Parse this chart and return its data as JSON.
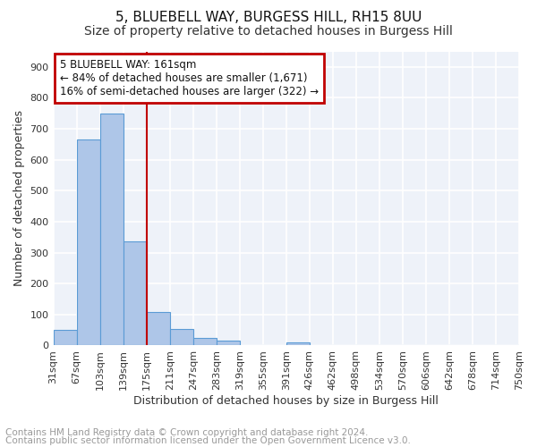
{
  "title1": "5, BLUEBELL WAY, BURGESS HILL, RH15 8UU",
  "title2": "Size of property relative to detached houses in Burgess Hill",
  "xlabel": "Distribution of detached houses by size in Burgess Hill",
  "ylabel": "Number of detached properties",
  "bin_labels": [
    "31sqm",
    "67sqm",
    "103sqm",
    "139sqm",
    "175sqm",
    "211sqm",
    "247sqm",
    "283sqm",
    "319sqm",
    "355sqm",
    "391sqm",
    "426sqm",
    "462sqm",
    "498sqm",
    "534sqm",
    "570sqm",
    "606sqm",
    "642sqm",
    "678sqm",
    "714sqm",
    "750sqm"
  ],
  "bar_values": [
    50,
    665,
    750,
    335,
    109,
    52,
    25,
    17,
    0,
    0,
    10,
    0,
    0,
    0,
    0,
    0,
    0,
    0,
    0,
    0
  ],
  "bar_color": "#aec6e8",
  "bar_edge_color": "#5b9bd5",
  "vline_value": 3.5,
  "vline_color": "#c00000",
  "ylim": [
    0,
    950
  ],
  "yticks": [
    0,
    100,
    200,
    300,
    400,
    500,
    600,
    700,
    800,
    900
  ],
  "annotation_title": "5 BLUEBELL WAY: 161sqm",
  "annotation_line1": "← 84% of detached houses are smaller (1,671)",
  "annotation_line2": "16% of semi-detached houses are larger (322) →",
  "annotation_box_edgecolor": "#c00000",
  "footer1": "Contains HM Land Registry data © Crown copyright and database right 2024.",
  "footer2": "Contains public sector information licensed under the Open Government Licence v3.0.",
  "bg_color": "#eef2f9",
  "grid_color": "#ffffff",
  "title_fontsize": 11,
  "subtitle_fontsize": 10,
  "axis_label_fontsize": 9,
  "tick_fontsize": 8,
  "footer_fontsize": 7.5,
  "annot_fontsize": 8.5
}
